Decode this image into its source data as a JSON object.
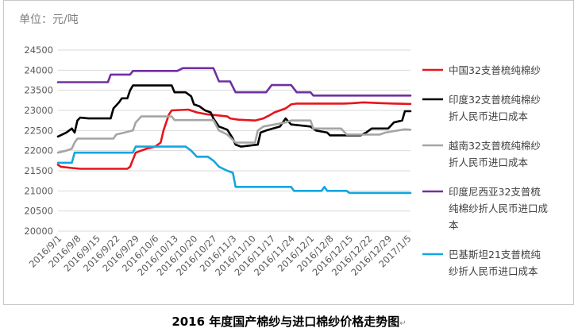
{
  "caption": "2016 年度国产棉纱与进口棉纱价格走势图",
  "caption_mark": "↵",
  "chart_data": {
    "type": "line",
    "unit_label": "单位：元/吨",
    "ylim": [
      20000,
      24500
    ],
    "y_ticks": [
      20000,
      20500,
      21000,
      21500,
      22000,
      22500,
      23000,
      23500,
      24000,
      24500
    ],
    "x_tick_labels": [
      "2016/9/1",
      "2016/9/8",
      "2016/9/15",
      "2016/9/22",
      "2016/9/29",
      "2016/10/6",
      "2016/10/13",
      "2016/10/20",
      "2016/10/27",
      "2016/11/3",
      "2016/11/10",
      "2016/11/17",
      "2016/11/24",
      "2016/12/1",
      "2016/12/8",
      "2016/12/15",
      "2016/12/22",
      "2016/12/29",
      "2017/1/5"
    ],
    "x_range": [
      "2016-09-01",
      "2017-01-06"
    ],
    "grid": "horizontal",
    "legend_position": "right",
    "series": [
      {
        "name": "中国32支普梳纯棉纱",
        "color": "#e8141b",
        "points": [
          [
            "2016-09-01",
            21650
          ],
          [
            "2016-09-02",
            21600
          ],
          [
            "2016-09-06",
            21570
          ],
          [
            "2016-09-09",
            21550
          ],
          [
            "2016-09-26",
            21550
          ],
          [
            "2016-09-27",
            21600
          ],
          [
            "2016-09-29",
            21950
          ],
          [
            "2016-10-03",
            22050
          ],
          [
            "2016-10-06",
            22100
          ],
          [
            "2016-10-08",
            22200
          ],
          [
            "2016-10-09",
            22500
          ],
          [
            "2016-10-11",
            22900
          ],
          [
            "2016-10-12",
            23000
          ],
          [
            "2016-10-18",
            23020
          ],
          [
            "2016-10-21",
            22950
          ],
          [
            "2016-10-25",
            22900
          ],
          [
            "2016-10-28",
            22880
          ],
          [
            "2016-11-01",
            22850
          ],
          [
            "2016-11-02",
            22800
          ],
          [
            "2016-11-05",
            22770
          ],
          [
            "2016-11-11",
            22750
          ],
          [
            "2016-11-14",
            22800
          ],
          [
            "2016-11-16",
            22870
          ],
          [
            "2016-11-18",
            22950
          ],
          [
            "2016-11-22",
            23050
          ],
          [
            "2016-11-24",
            23150
          ],
          [
            "2016-11-26",
            23170
          ],
          [
            "2016-12-13",
            23170
          ],
          [
            "2016-12-16",
            23180
          ],
          [
            "2016-12-20",
            23200
          ],
          [
            "2016-12-27",
            23180
          ],
          [
            "2016-12-31",
            23170
          ],
          [
            "2017-01-06",
            23160
          ]
        ]
      },
      {
        "name": "印度32支普梳纯棉纱折人民币进口成本",
        "color": "#000000",
        "points": [
          [
            "2016-09-01",
            22350
          ],
          [
            "2016-09-04",
            22450
          ],
          [
            "2016-09-06",
            22550
          ],
          [
            "2016-09-07",
            22450
          ],
          [
            "2016-09-08",
            22750
          ],
          [
            "2016-09-09",
            22820
          ],
          [
            "2016-09-12",
            22800
          ],
          [
            "2016-09-20",
            22800
          ],
          [
            "2016-09-21",
            23050
          ],
          [
            "2016-09-23",
            23200
          ],
          [
            "2016-09-24",
            23300
          ],
          [
            "2016-09-26",
            23300
          ],
          [
            "2016-09-27",
            23500
          ],
          [
            "2016-09-28",
            23620
          ],
          [
            "2016-10-12",
            23620
          ],
          [
            "2016-10-13",
            23450
          ],
          [
            "2016-10-17",
            23450
          ],
          [
            "2016-10-19",
            23350
          ],
          [
            "2016-10-20",
            23150
          ],
          [
            "2016-10-22",
            23100
          ],
          [
            "2016-10-24",
            23000
          ],
          [
            "2016-10-26",
            22950
          ],
          [
            "2016-10-27",
            22800
          ],
          [
            "2016-10-29",
            22600
          ],
          [
            "2016-11-01",
            22520
          ],
          [
            "2016-11-03",
            22300
          ],
          [
            "2016-11-04",
            22150
          ],
          [
            "2016-11-06",
            22100
          ],
          [
            "2016-11-12",
            22150
          ],
          [
            "2016-11-13",
            22450
          ],
          [
            "2016-11-15",
            22500
          ],
          [
            "2016-11-20",
            22600
          ],
          [
            "2016-11-22",
            22800
          ],
          [
            "2016-11-24",
            22650
          ],
          [
            "2016-12-01",
            22600
          ],
          [
            "2016-12-03",
            22500
          ],
          [
            "2016-12-07",
            22450
          ],
          [
            "2016-12-08",
            22380
          ],
          [
            "2016-12-19",
            22380
          ],
          [
            "2016-12-21",
            22450
          ],
          [
            "2016-12-23",
            22550
          ],
          [
            "2016-12-29",
            22550
          ],
          [
            "2016-12-31",
            22700
          ],
          [
            "2017-01-03",
            22750
          ],
          [
            "2017-01-04",
            22980
          ],
          [
            "2017-01-06",
            22980
          ]
        ]
      },
      {
        "name": "越南32支普梳纯棉纱折人民币进口成本",
        "color": "#a5a5a5",
        "points": [
          [
            "2016-09-01",
            21950
          ],
          [
            "2016-09-04",
            22000
          ],
          [
            "2016-09-06",
            22050
          ],
          [
            "2016-09-07",
            22200
          ],
          [
            "2016-09-08",
            22300
          ],
          [
            "2016-09-21",
            22300
          ],
          [
            "2016-09-22",
            22400
          ],
          [
            "2016-09-25",
            22450
          ],
          [
            "2016-09-28",
            22500
          ],
          [
            "2016-09-29",
            22700
          ],
          [
            "2016-10-01",
            22850
          ],
          [
            "2016-10-12",
            22850
          ],
          [
            "2016-10-13",
            22760
          ],
          [
            "2016-10-27",
            22760
          ],
          [
            "2016-10-29",
            22500
          ],
          [
            "2016-11-01",
            22400
          ],
          [
            "2016-11-04",
            22200
          ],
          [
            "2016-11-11",
            22200
          ],
          [
            "2016-11-12",
            22500
          ],
          [
            "2016-11-14",
            22600
          ],
          [
            "2016-11-22",
            22700
          ],
          [
            "2016-11-24",
            22750
          ],
          [
            "2016-12-01",
            22750
          ],
          [
            "2016-12-02",
            22550
          ],
          [
            "2016-12-12",
            22550
          ],
          [
            "2016-12-14",
            22400
          ],
          [
            "2016-12-26",
            22400
          ],
          [
            "2016-12-28",
            22450
          ],
          [
            "2017-01-04",
            22530
          ],
          [
            "2017-01-06",
            22520
          ]
        ]
      },
      {
        "name": "印度尼西亚32支普梳纯棉纱折人民币进口成本",
        "color": "#7030a0",
        "points": [
          [
            "2016-09-01",
            23700
          ],
          [
            "2016-09-19",
            23700
          ],
          [
            "2016-09-20",
            23890
          ],
          [
            "2016-09-27",
            23890
          ],
          [
            "2016-09-28",
            23980
          ],
          [
            "2016-10-14",
            23980
          ],
          [
            "2016-10-16",
            24050
          ],
          [
            "2016-10-27",
            24050
          ],
          [
            "2016-10-29",
            23720
          ],
          [
            "2016-11-02",
            23720
          ],
          [
            "2016-11-04",
            23450
          ],
          [
            "2016-11-15",
            23450
          ],
          [
            "2016-11-17",
            23630
          ],
          [
            "2016-11-24",
            23630
          ],
          [
            "2016-11-26",
            23450
          ],
          [
            "2016-12-01",
            23450
          ],
          [
            "2016-12-02",
            23370
          ],
          [
            "2017-01-06",
            23370
          ]
        ]
      },
      {
        "name": "巴基斯坦21支普梳纯纱折人民币进口成本",
        "color": "#13a6e0",
        "points": [
          [
            "2016-09-01",
            21700
          ],
          [
            "2016-09-06",
            21700
          ],
          [
            "2016-09-07",
            21950
          ],
          [
            "2016-09-28",
            21950
          ],
          [
            "2016-09-29",
            22100
          ],
          [
            "2016-10-17",
            22100
          ],
          [
            "2016-10-19",
            22000
          ],
          [
            "2016-10-21",
            21850
          ],
          [
            "2016-10-25",
            21850
          ],
          [
            "2016-10-27",
            21750
          ],
          [
            "2016-10-29",
            21600
          ],
          [
            "2016-11-01",
            21500
          ],
          [
            "2016-11-03",
            21450
          ],
          [
            "2016-11-04",
            21100
          ],
          [
            "2016-11-24",
            21100
          ],
          [
            "2016-11-25",
            21000
          ],
          [
            "2016-12-05",
            21000
          ],
          [
            "2016-12-06",
            21100
          ],
          [
            "2016-12-07",
            21000
          ],
          [
            "2016-12-14",
            21000
          ],
          [
            "2016-12-15",
            20950
          ],
          [
            "2017-01-06",
            20950
          ]
        ]
      }
    ]
  }
}
